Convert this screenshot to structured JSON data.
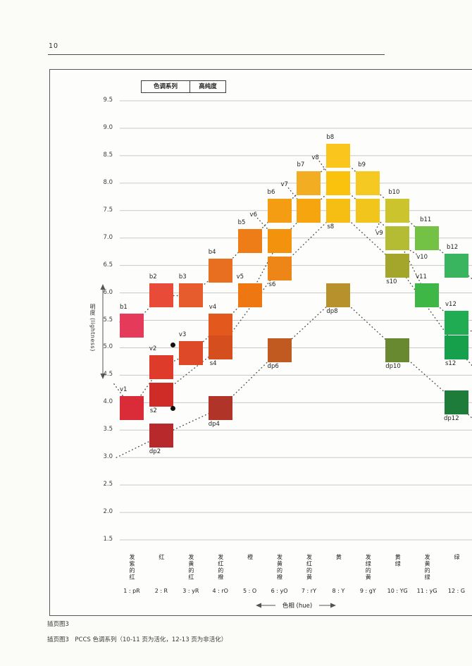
{
  "page": {
    "number": "10"
  },
  "legend": {
    "cells": [
      "色调系列",
      "高纯度"
    ]
  },
  "y_axis": {
    "title": "明度 (lightness)",
    "ticks": [
      "9.5",
      "9.0",
      "8.5",
      "8.0",
      "7.5",
      "7.0",
      "6.5",
      "6.0",
      "5.5",
      "5.0",
      "4.5",
      "4.0",
      "3.5",
      "3.0",
      "2.5",
      "2.0",
      "1.5"
    ]
  },
  "x_axis": {
    "title": "色相 (hue)",
    "hues": [
      {
        "code": "1 : pR",
        "name": "发紫的红"
      },
      {
        "code": "2 : R",
        "name": "红"
      },
      {
        "code": "3 : yR",
        "name": "发黄的红"
      },
      {
        "code": "4 : rO",
        "name": "发红的橙"
      },
      {
        "code": "5 : O",
        "name": "橙"
      },
      {
        "code": "6 : yO",
        "name": "发黄的橙"
      },
      {
        "code": "7 : rY",
        "name": "发红的黄"
      },
      {
        "code": "8 : Y",
        "name": "黄"
      },
      {
        "code": "9 : gY",
        "name": "发绿的黄"
      },
      {
        "code": "10 : YG",
        "name": "黄绿"
      },
      {
        "code": "11 : yG",
        "name": "发黄的绿"
      },
      {
        "code": "12 : G",
        "name": "绿"
      }
    ]
  },
  "captions": {
    "line1": "插页图3",
    "line2": "插页图3　PCCS 色调系列（10-11 页为活化，12-13 页为非活化）"
  },
  "chart_data": {
    "type": "scatter",
    "title": "PCCS 色调系列",
    "xlabel": "色相 (hue)",
    "ylabel": "明度 (lightness)",
    "ylim": [
      1.5,
      9.5
    ],
    "grid": true,
    "x_categories": [
      "1:pR",
      "2:R",
      "3:yR",
      "4:rO",
      "5:O",
      "6:yO",
      "7:rY",
      "8:Y",
      "9:gY",
      "10:YG",
      "11:yG",
      "12:G"
    ],
    "series": [
      {
        "name": "b",
        "lead": {
          "hue": 0.6,
          "l": 5.47
        },
        "tail": {
          "hue": 12.6,
          "l": 6.22
        },
        "points": [
          {
            "id": "b1",
            "hue": 1,
            "l": 5.4,
            "color": "#e53a5a",
            "lp": "top"
          },
          {
            "id": "b2",
            "hue": 2,
            "l": 5.95,
            "color": "#e84b38",
            "lp": "top"
          },
          {
            "id": "b3",
            "hue": 3,
            "l": 5.95,
            "color": "#e75c2d",
            "lp": "top"
          },
          {
            "id": "b4",
            "hue": 4,
            "l": 6.4,
            "color": "#e76f1f",
            "lp": "top"
          },
          {
            "id": "b5",
            "hue": 5,
            "l": 6.95,
            "color": "#ee7d18",
            "lp": "top"
          },
          {
            "id": "b6",
            "hue": 6,
            "l": 7.5,
            "color": "#f49d12",
            "lp": "top"
          },
          {
            "id": "b7",
            "hue": 7,
            "l": 8.0,
            "color": "#f2ad22",
            "lp": "top"
          },
          {
            "id": "b8",
            "hue": 8,
            "l": 8.5,
            "color": "#fac61e",
            "lp": "top"
          },
          {
            "id": "b9",
            "hue": 9,
            "l": 8.0,
            "color": "#f6c822",
            "lp": "top",
            "dx": 3
          },
          {
            "id": "b10",
            "hue": 10,
            "l": 7.5,
            "color": "#cbc42d",
            "lp": "top",
            "dx": 4
          },
          {
            "id": "b11",
            "hue": 11,
            "l": 7.0,
            "color": "#74c245",
            "lp": "top",
            "dx": 7
          },
          {
            "id": "b12",
            "hue": 12,
            "l": 6.5,
            "color": "#3ab55f",
            "lp": "top",
            "dx": 3
          }
        ]
      },
      {
        "name": "v",
        "lead": {
          "hue": 0.4,
          "l": 4.34
        },
        "tail": {
          "hue": 12.65,
          "l": 5.26
        },
        "points": [
          {
            "id": "v1",
            "hue": 1,
            "l": 3.9,
            "color": "#d92b38",
            "lp": "top"
          },
          {
            "id": "v2",
            "hue": 2,
            "l": 4.65,
            "color": "#de3b2a",
            "lp": "top"
          },
          {
            "id": "v3",
            "hue": 3,
            "l": 4.9,
            "color": "#de4a28",
            "lp": "top"
          },
          {
            "id": "v4",
            "hue": 4,
            "l": 5.4,
            "color": "#e2581d",
            "lp": "top",
            "dx": 1
          },
          {
            "id": "v5",
            "hue": 5,
            "l": 5.95,
            "color": "#ee7712",
            "lp": "top",
            "dx": -2
          },
          {
            "id": "v6",
            "hue": 6,
            "l": 6.95,
            "color": "#f3920d",
            "lp": "custom",
            "dx": -25,
            "dy": -24,
            "tie": true
          },
          {
            "id": "v7",
            "hue": 7,
            "l": 7.5,
            "color": "#f6a50f",
            "lp": "custom",
            "dx": -23,
            "dy": -24,
            "tie": true
          },
          {
            "id": "v8",
            "hue": 8,
            "l": 8.0,
            "color": "#fac20c",
            "lp": "custom",
            "dx": -21,
            "dy": -23,
            "tie": true
          },
          {
            "id": "v9",
            "hue": 9,
            "l": 7.5,
            "color": "#f2c51d",
            "lp": "custom",
            "dx": 28,
            "dy": 45,
            "tie": true
          },
          {
            "id": "v10",
            "hue": 10,
            "l": 7.0,
            "color": "#b4bc33",
            "lp": "custom",
            "dx": 44,
            "dy": 40,
            "tie": true
          },
          {
            "id": "v11",
            "hue": 11,
            "l": 5.95,
            "color": "#3fb747",
            "lp": "top",
            "dx": 1
          },
          {
            "id": "v12",
            "hue": 12,
            "l": 5.45,
            "color": "#1fac52",
            "lp": "top",
            "dx": 1
          }
        ]
      },
      {
        "name": "s",
        "tail": {
          "hue": 12.65,
          "l": 4.6
        },
        "points": [
          {
            "id": "s2",
            "hue": 2,
            "l": 4.15,
            "color": "#cf2c28",
            "lp": "bottom",
            "dx": 1
          },
          {
            "id": "s4",
            "hue": 4,
            "l": 5.0,
            "color": "#d54e1e",
            "lp": "bottom",
            "dx": 2
          },
          {
            "id": "s6",
            "hue": 6,
            "l": 6.45,
            "color": "#ed8617",
            "lp": "bottom",
            "dx": 2
          },
          {
            "id": "s8",
            "hue": 8,
            "l": 7.5,
            "color": "#f6bd12",
            "lp": "bottom",
            "dx": 1
          },
          {
            "id": "s10",
            "hue": 10,
            "l": 6.5,
            "color": "#a4a62c",
            "lp": "bottom",
            "dx": 1
          },
          {
            "id": "s12",
            "hue": 12,
            "l": 5.0,
            "color": "#16a04c",
            "lp": "bottom",
            "dx": 1
          }
        ]
      },
      {
        "name": "dp",
        "lead": {
          "hue": 0.48,
          "l": 3.0
        },
        "tail": {
          "hue": 12.65,
          "l": 3.65
        },
        "points": [
          {
            "id": "dp2",
            "hue": 2,
            "l": 3.4,
            "color": "#b8292b",
            "lp": "bottom"
          },
          {
            "id": "dp4",
            "hue": 4,
            "l": 3.9,
            "color": "#b13428",
            "lp": "bottom"
          },
          {
            "id": "dp6",
            "hue": 6,
            "l": 4.95,
            "color": "#c05a21",
            "lp": "bottom"
          },
          {
            "id": "dp8",
            "hue": 8,
            "l": 5.95,
            "color": "#b7922c",
            "lp": "bottom"
          },
          {
            "id": "dp10",
            "hue": 10,
            "l": 4.95,
            "color": "#68892f",
            "lp": "bottom"
          },
          {
            "id": "dp12",
            "hue": 12,
            "l": 4.0,
            "color": "#1d7c3a",
            "lp": "bottom",
            "dx": -1
          }
        ]
      }
    ],
    "marker_dots": [
      {
        "hue": 2.4,
        "l": 5.05
      },
      {
        "hue": 2.4,
        "l": 3.9
      }
    ]
  }
}
